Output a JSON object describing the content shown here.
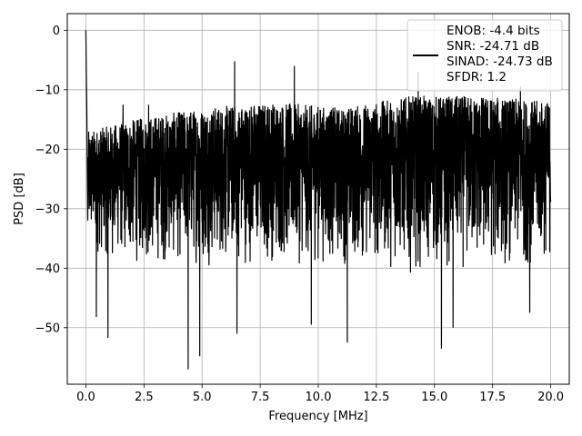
{
  "chart_data": {
    "type": "line",
    "xlabel": "Frequency [MHz]",
    "ylabel": "PSD [dB]",
    "xlim": [
      -0.8,
      20.8
    ],
    "ylim": [
      -59.5,
      2.8
    ],
    "x_ticks": [
      0.0,
      2.5,
      5.0,
      7.5,
      10.0,
      12.5,
      15.0,
      17.5,
      20.0
    ],
    "x_tick_labels": [
      "0.0",
      "2.5",
      "5.0",
      "7.5",
      "10.0",
      "12.5",
      "15.0",
      "17.5",
      "20.0"
    ],
    "y_ticks": [
      0,
      -10,
      -20,
      -30,
      -40,
      -50
    ],
    "y_tick_labels": [
      "0",
      "−10",
      "−20",
      "−30",
      "−40",
      "−50"
    ],
    "grid": true,
    "legend_position": "top-right",
    "series": [
      {
        "name": "ENOB: -4.4 bits\nSNR: -24.71 dB\nSINAD: -24.73 dB\nSFDR: 1.2",
        "color": "#000000",
        "x_range": [
          0,
          20
        ],
        "peak": {
          "x": 0.0,
          "y": 0.0
        },
        "noise_floor_upper_envelope": [
          [
            0.1,
            -17
          ],
          [
            2.0,
            -15
          ],
          [
            5.0,
            -13
          ],
          [
            8.0,
            -12
          ],
          [
            11.0,
            -13
          ],
          [
            14.0,
            -11
          ],
          [
            17.0,
            -11
          ],
          [
            20.0,
            -12
          ]
        ],
        "upper_spikes": [
          [
            0.0,
            0.0
          ],
          [
            1.6,
            -12.5
          ],
          [
            2.7,
            -12.5
          ],
          [
            6.4,
            -5.2
          ],
          [
            8.97,
            -6.0
          ],
          [
            14.3,
            -7.0
          ],
          [
            18.7,
            -9.5
          ]
        ],
        "noise_floor_lower_envelope": [
          [
            0.1,
            -38
          ],
          [
            2.0,
            -40
          ],
          [
            5.0,
            -40
          ],
          [
            8.0,
            -40
          ],
          [
            11.0,
            -40
          ],
          [
            14.0,
            -41
          ],
          [
            17.0,
            -41
          ],
          [
            20.0,
            -40
          ]
        ],
        "lower_spikes": [
          [
            0.45,
            -48.2
          ],
          [
            0.95,
            -51.7
          ],
          [
            4.4,
            -57.0
          ],
          [
            4.9,
            -54.8
          ],
          [
            6.5,
            -51.0
          ],
          [
            9.7,
            -49.5
          ],
          [
            11.25,
            -52.5
          ],
          [
            15.3,
            -53.5
          ],
          [
            15.8,
            -50.0
          ],
          [
            19.1,
            -47.5
          ]
        ]
      }
    ],
    "legend": {
      "lines": [
        "ENOB: -4.4 bits",
        "SNR: -24.71 dB",
        "SINAD: -24.73 dB",
        "SFDR: 1.2"
      ]
    }
  }
}
